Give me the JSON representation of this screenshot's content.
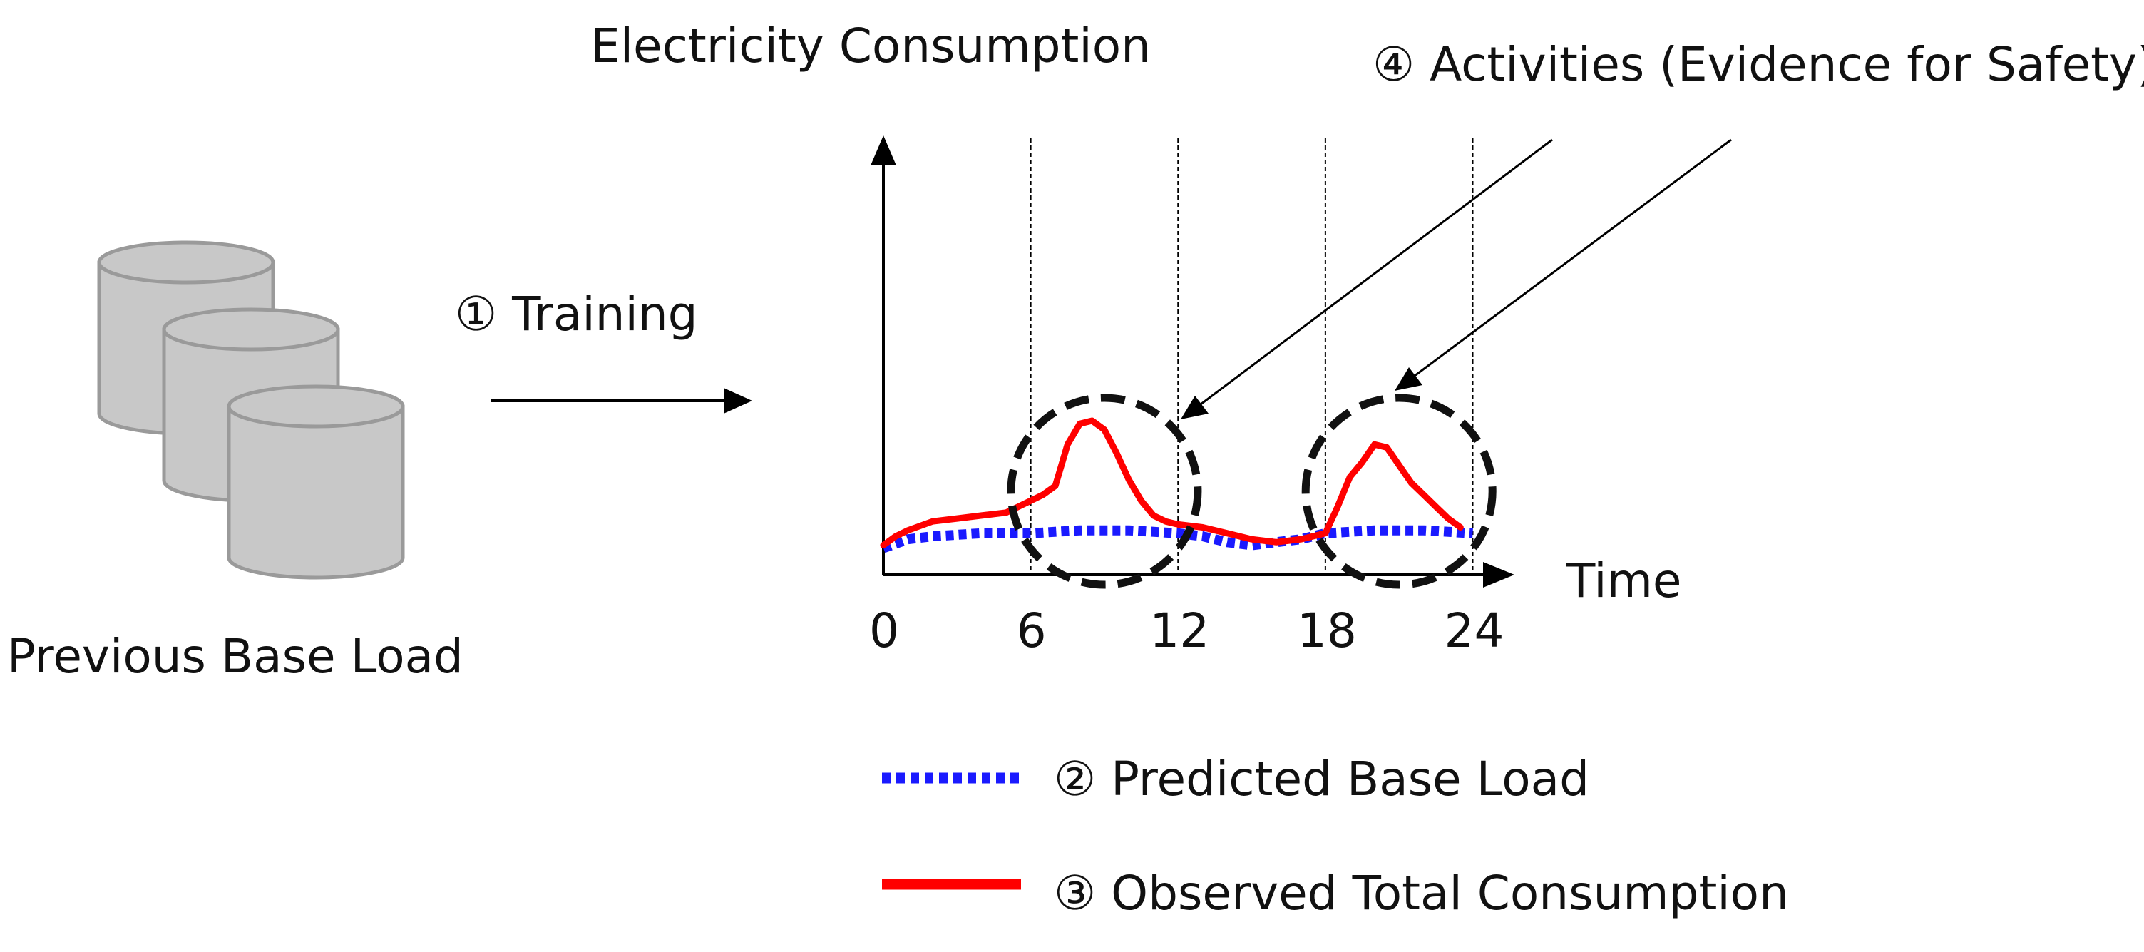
{
  "colors": {
    "predicted": "#1a1aff",
    "observed": "#ff0000",
    "cylinder_fill": "#c8c8c8",
    "cylinder_stroke": "#9a9a9a",
    "ink": "#000000"
  },
  "database": {
    "icon": "database-stack-icon",
    "label": "Previous Base Load"
  },
  "training": {
    "label": "① Training"
  },
  "chart_data": {
    "type": "line",
    "title": "Electricity Consumption",
    "xlabel": "Time",
    "ylabel": "",
    "xlim": [
      0,
      24
    ],
    "ylim": [
      0,
      10
    ],
    "x_ticks": [
      0,
      6,
      12,
      18,
      24
    ],
    "x_tick_labels": [
      "0",
      "6",
      "12",
      "18",
      "24"
    ],
    "time_dividers": [
      6,
      12,
      18,
      24
    ],
    "series": [
      {
        "name": "② Predicted Base Load",
        "style": "dotted",
        "x": [
          0,
          1,
          2,
          4,
          6,
          8,
          10,
          12,
          13,
          14,
          15,
          16,
          17,
          18,
          20,
          22,
          24
        ],
        "y": [
          0.9,
          1.2,
          1.3,
          1.4,
          1.4,
          1.5,
          1.5,
          1.4,
          1.3,
          1.1,
          1.0,
          1.1,
          1.2,
          1.4,
          1.5,
          1.5,
          1.4
        ]
      },
      {
        "name": "③ Observed Total Consumption",
        "style": "solid",
        "x": [
          0,
          0.5,
          1,
          2,
          3,
          4,
          5,
          6,
          6.5,
          7,
          7.5,
          8,
          8.5,
          9,
          9.5,
          10,
          10.5,
          11,
          11.5,
          12,
          13,
          14,
          15,
          16,
          17,
          18,
          18.5,
          19,
          19.5,
          20,
          20.5,
          21,
          21.5,
          22,
          22.5,
          23,
          23.5
        ],
        "y": [
          1.0,
          1.3,
          1.5,
          1.8,
          1.9,
          2.0,
          2.1,
          2.5,
          2.7,
          3.0,
          4.4,
          5.1,
          5.2,
          4.9,
          4.1,
          3.2,
          2.5,
          2.0,
          1.8,
          1.7,
          1.6,
          1.4,
          1.2,
          1.1,
          1.2,
          1.4,
          2.3,
          3.3,
          3.8,
          4.4,
          4.3,
          3.7,
          3.1,
          2.7,
          2.3,
          1.9,
          1.6
        ]
      }
    ],
    "highlights": [
      {
        "center_x": 9,
        "center_y": 3.2
      },
      {
        "center_x": 21,
        "center_y": 3.2
      }
    ],
    "annotation": "④ Activities (Evidence for Safety)"
  },
  "legend": {
    "predicted_label": "② Predicted Base Load",
    "observed_label": "③ Observed Total Consumption"
  }
}
